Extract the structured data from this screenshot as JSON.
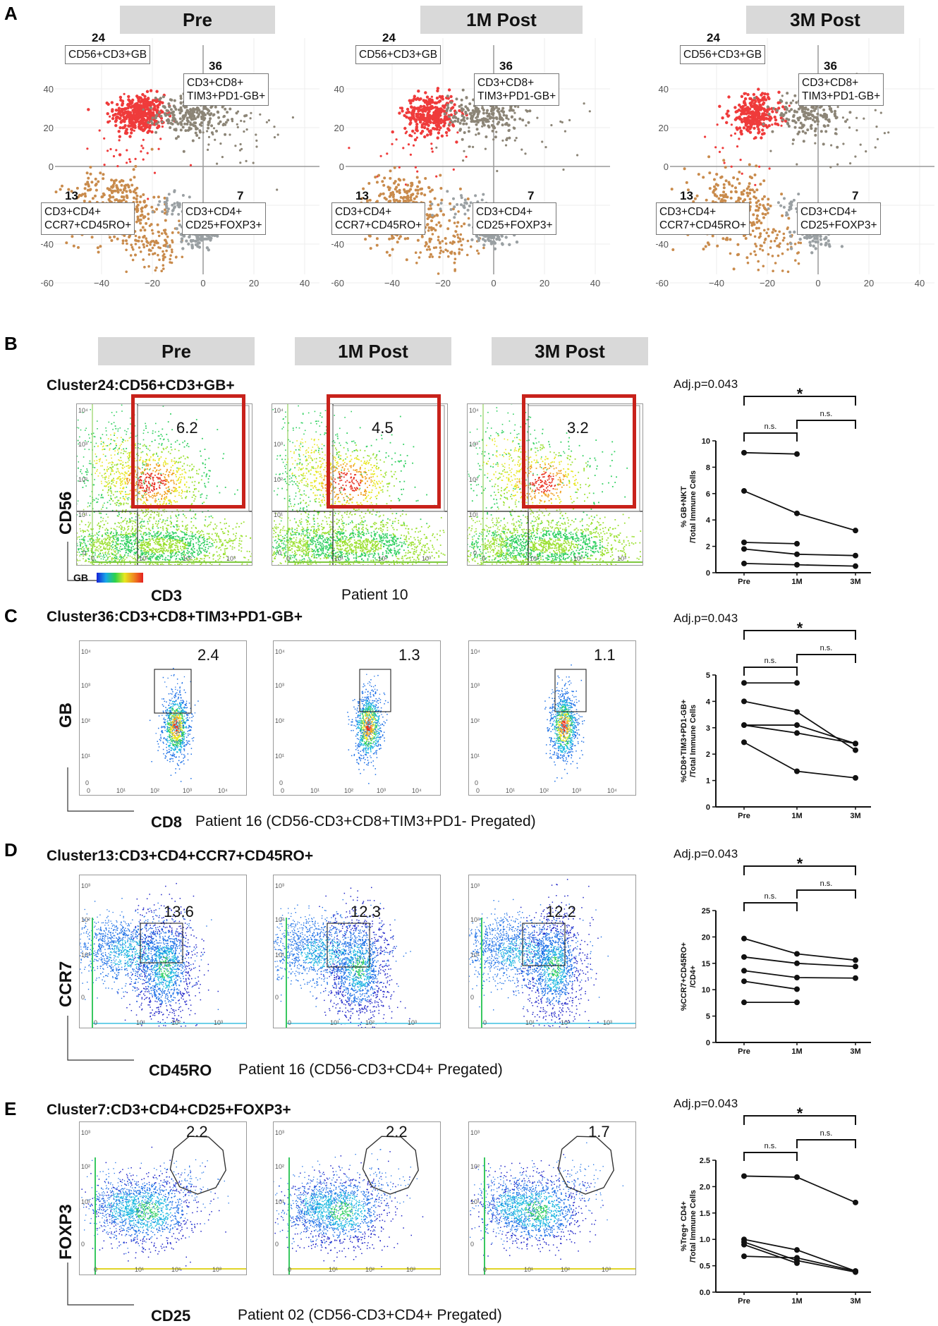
{
  "panels": {
    "A": {
      "letter": "A",
      "conditions": [
        "Pre",
        "1M Post",
        "3M Post"
      ],
      "clusters": [
        {
          "num": "24",
          "label_lines": [
            "CD56+CD3+GB"
          ]
        },
        {
          "num": "36",
          "label_lines": [
            "CD3+CD8+",
            "TIM3+PD1-GB+"
          ]
        },
        {
          "num": "13",
          "label_lines": [
            "CD3+CD4+",
            "CCR7+CD45RO+"
          ]
        },
        {
          "num": "7",
          "label_lines": [
            "CD3+CD4+",
            "CD25+FOXP3+"
          ]
        }
      ],
      "x_ticks": [
        "−40",
        "−20",
        "0",
        "20",
        "40"
      ],
      "y_ticks": [
        "40",
        "20",
        "0",
        "−20",
        "−40",
        "−60"
      ],
      "colors": {
        "nkt": "#ef3b3b",
        "cd8": "#8c8577",
        "cd4": "#c98b4c",
        "treg": "#9aa0a3"
      }
    },
    "B": {
      "letter": "B",
      "conditions": [
        "Pre",
        "1M Post",
        "3M Post"
      ],
      "title": "Cluster24:CD56+CD3+GB+",
      "gate_values": [
        "6.2",
        "4.5",
        "3.2"
      ],
      "x_axis": "CD3",
      "y_axis": "CD56",
      "color_key": "GB",
      "caption": "Patient 10",
      "ticks": [
        "10⁴",
        "10³",
        "10²",
        "10¹",
        "0",
        "10¹",
        "10²",
        "10³"
      ]
    },
    "C": {
      "letter": "C",
      "title": "Cluster36:CD3+CD8+TIM3+PD1-GB+",
      "gate_values": [
        "2.4",
        "1.3",
        "1.1"
      ],
      "x_axis": "CD8",
      "y_axis": "GB",
      "caption": "Patient 16 (CD56-CD3+CD8+TIM3+PD1- Pregated)"
    },
    "D": {
      "letter": "D",
      "title": "Cluster13:CD3+CD4+CCR7+CD45RO+",
      "gate_values": [
        "13.6",
        "12.3",
        "12.2"
      ],
      "x_axis": "CD45RO",
      "y_axis": "CCR7",
      "caption": "Patient 16 (CD56-CD3+CD4+ Pregated)"
    },
    "E": {
      "letter": "E",
      "title": "Cluster7:CD3+CD4+CD25+FOXP3+",
      "gate_values": [
        "2.2",
        "2.2",
        "1.7"
      ],
      "x_axis": "CD25",
      "y_axis": "FOXP3",
      "caption": "Patient 02 (CD56-CD3+CD4+ Pregated)"
    }
  },
  "chart_data": [
    {
      "type": "line",
      "panel": "B",
      "adjp": "Adj.p=0.043",
      "sig": "*",
      "ns": "n.s.",
      "ylabel": "% GB+NKT\n/Total Immune Cells",
      "categories": [
        "Pre",
        "1M",
        "3M"
      ],
      "ylim": [
        0,
        10
      ],
      "yticks": [
        0,
        2,
        4,
        6,
        8,
        10
      ],
      "series": [
        [
          9.1,
          9.0,
          null
        ],
        [
          6.2,
          4.5,
          3.2
        ],
        [
          2.3,
          2.2,
          null
        ],
        [
          1.8,
          1.4,
          1.3
        ],
        [
          0.7,
          0.6,
          0.5
        ]
      ]
    },
    {
      "type": "line",
      "panel": "C",
      "adjp": "Adj.p=0.043",
      "sig": "*",
      "ns": "n.s.",
      "ylabel": "%CD8+TIM3+PD1-GB+\n/Total Immune Cells",
      "categories": [
        "Pre",
        "1M",
        "3M"
      ],
      "ylim": [
        0,
        5
      ],
      "yticks": [
        0,
        1,
        2,
        3,
        4,
        5
      ],
      "series": [
        [
          4.7,
          4.7,
          null
        ],
        [
          4.0,
          3.6,
          2.15
        ],
        [
          3.1,
          3.1,
          2.4
        ],
        [
          3.1,
          2.8,
          2.4
        ],
        [
          2.45,
          1.35,
          1.1
        ]
      ]
    },
    {
      "type": "line",
      "panel": "D",
      "adjp": "Adj.p=0.043",
      "sig": "*",
      "ns": "n.s.",
      "ylabel": "%CCR7+CD45RO+\n/CD4+",
      "categories": [
        "Pre",
        "1M",
        "3M"
      ],
      "ylim": [
        0,
        25
      ],
      "yticks": [
        0,
        5,
        10,
        15,
        20,
        25
      ],
      "series": [
        [
          19.7,
          16.8,
          15.6
        ],
        [
          16.2,
          15.0,
          14.4
        ],
        [
          13.6,
          12.3,
          12.2
        ],
        [
          11.6,
          10.1,
          null
        ],
        [
          7.6,
          7.6,
          null
        ]
      ]
    },
    {
      "type": "line",
      "panel": "E",
      "adjp": "Adj.p=0.043",
      "sig": "*",
      "ns": "n.s.",
      "ylabel": "%Treg+ CD4+\n/Total Immune Cells",
      "categories": [
        "Pre",
        "1M",
        "3M"
      ],
      "ylim": [
        0,
        2.5
      ],
      "yticks": [
        0,
        0.5,
        1.0,
        1.5,
        2.0,
        2.5
      ],
      "series": [
        [
          2.2,
          2.18,
          1.7
        ],
        [
          1.0,
          0.8,
          0.4
        ],
        [
          0.95,
          0.6,
          0.38
        ],
        [
          0.9,
          0.55,
          null
        ],
        [
          0.68,
          0.65,
          0.4
        ]
      ]
    }
  ]
}
